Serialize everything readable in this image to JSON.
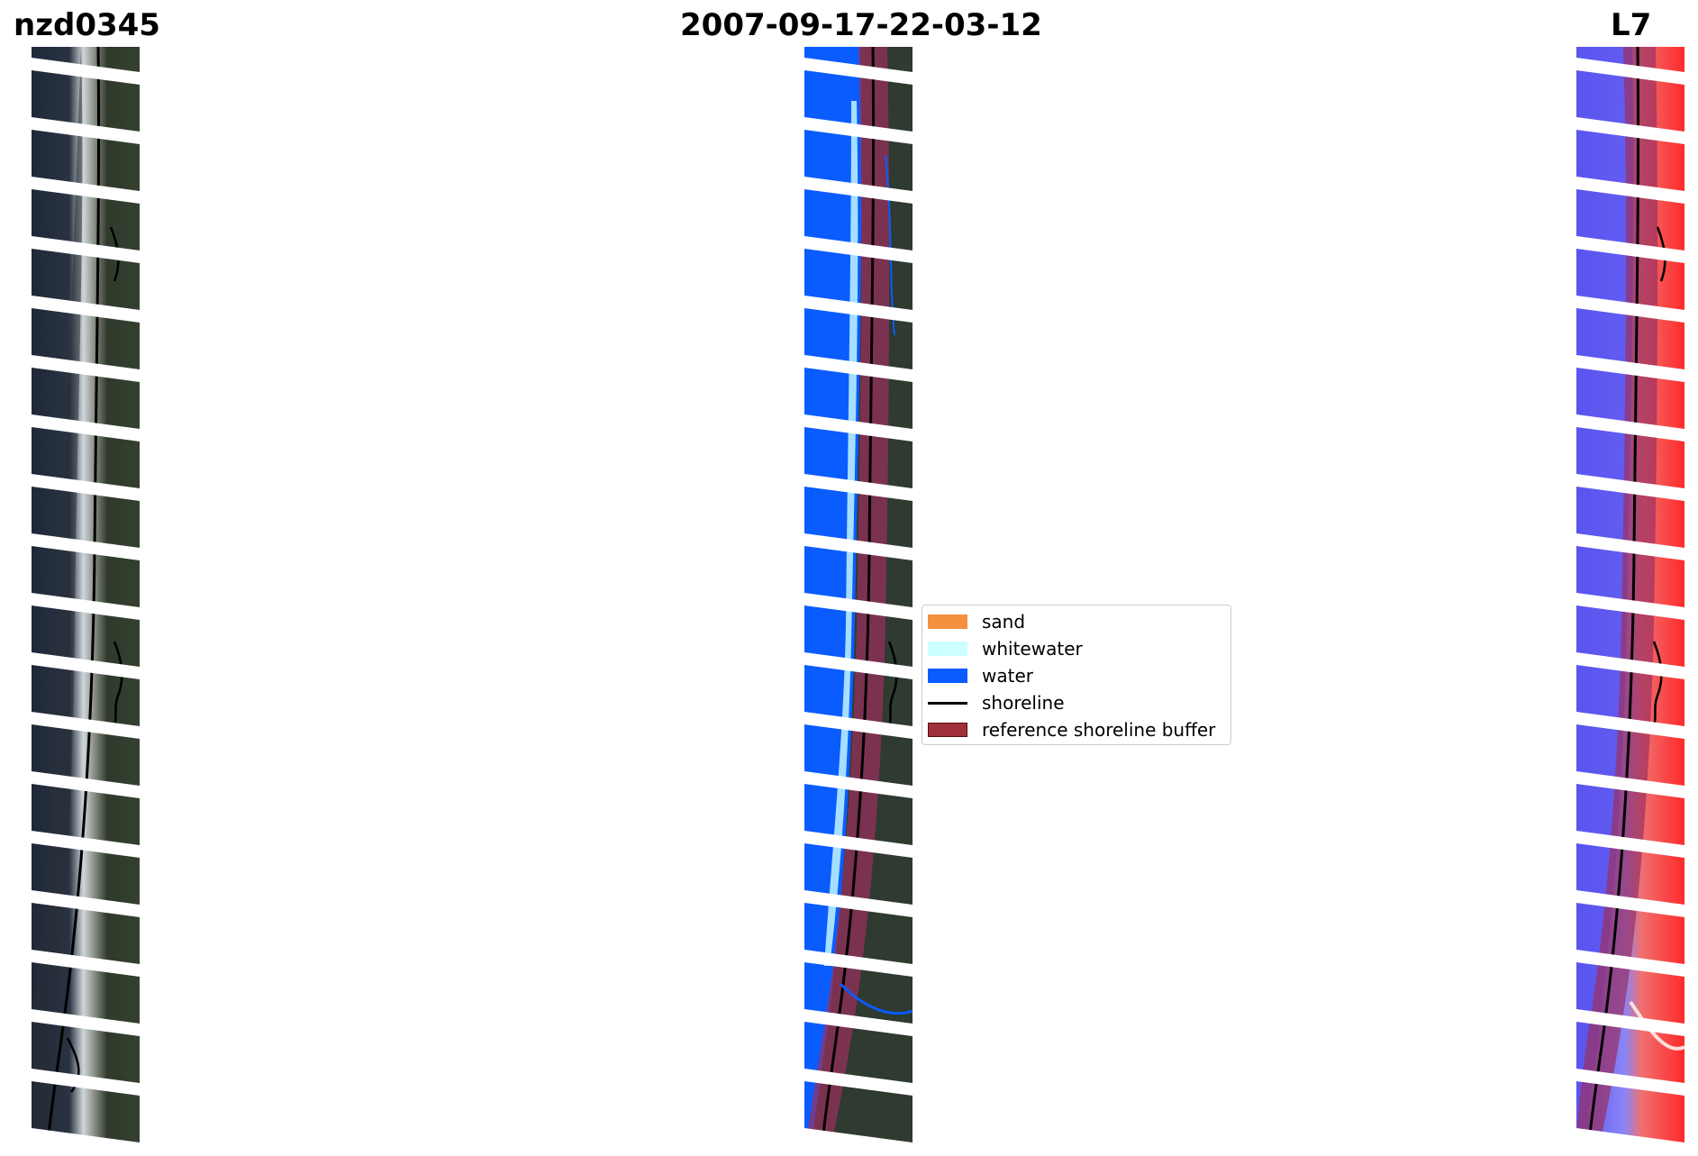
{
  "titles": {
    "site": "nzd0345",
    "date": "2007-09-17-22-03-12",
    "satellite": "L7"
  },
  "panels": [
    {
      "name": "rgb-image",
      "description_kind": "true colour satellite image with detected shoreline"
    },
    {
      "name": "classified-image",
      "description_kind": "classified image with reference shoreline buffer"
    },
    {
      "name": "ndwi-image",
      "description_kind": "water index image with reference shoreline buffer"
    }
  ],
  "legend": {
    "items": [
      {
        "label": "sand",
        "color": "#f5903e",
        "kind": "patch"
      },
      {
        "label": "whitewater",
        "color": "#ccffff",
        "kind": "patch"
      },
      {
        "label": "water",
        "color": "#0a5cff",
        "kind": "patch"
      },
      {
        "label": "shoreline",
        "color": "#000000",
        "kind": "line"
      },
      {
        "label": "reference shoreline buffer",
        "color": "#a0303a",
        "kind": "patch"
      }
    ]
  },
  "colors": {
    "land_dark": "#2f3a2c",
    "ocean_dark": "#1e2636",
    "surf": "#d8dde3",
    "water_class": "#0a5cff",
    "whitewater_class": "#ccffff",
    "buffer": "#9b2f5f",
    "ndwi_water": "#5a55f0",
    "ndwi_land": "#ff2a2a",
    "scanline_gap": "#ffffff"
  }
}
